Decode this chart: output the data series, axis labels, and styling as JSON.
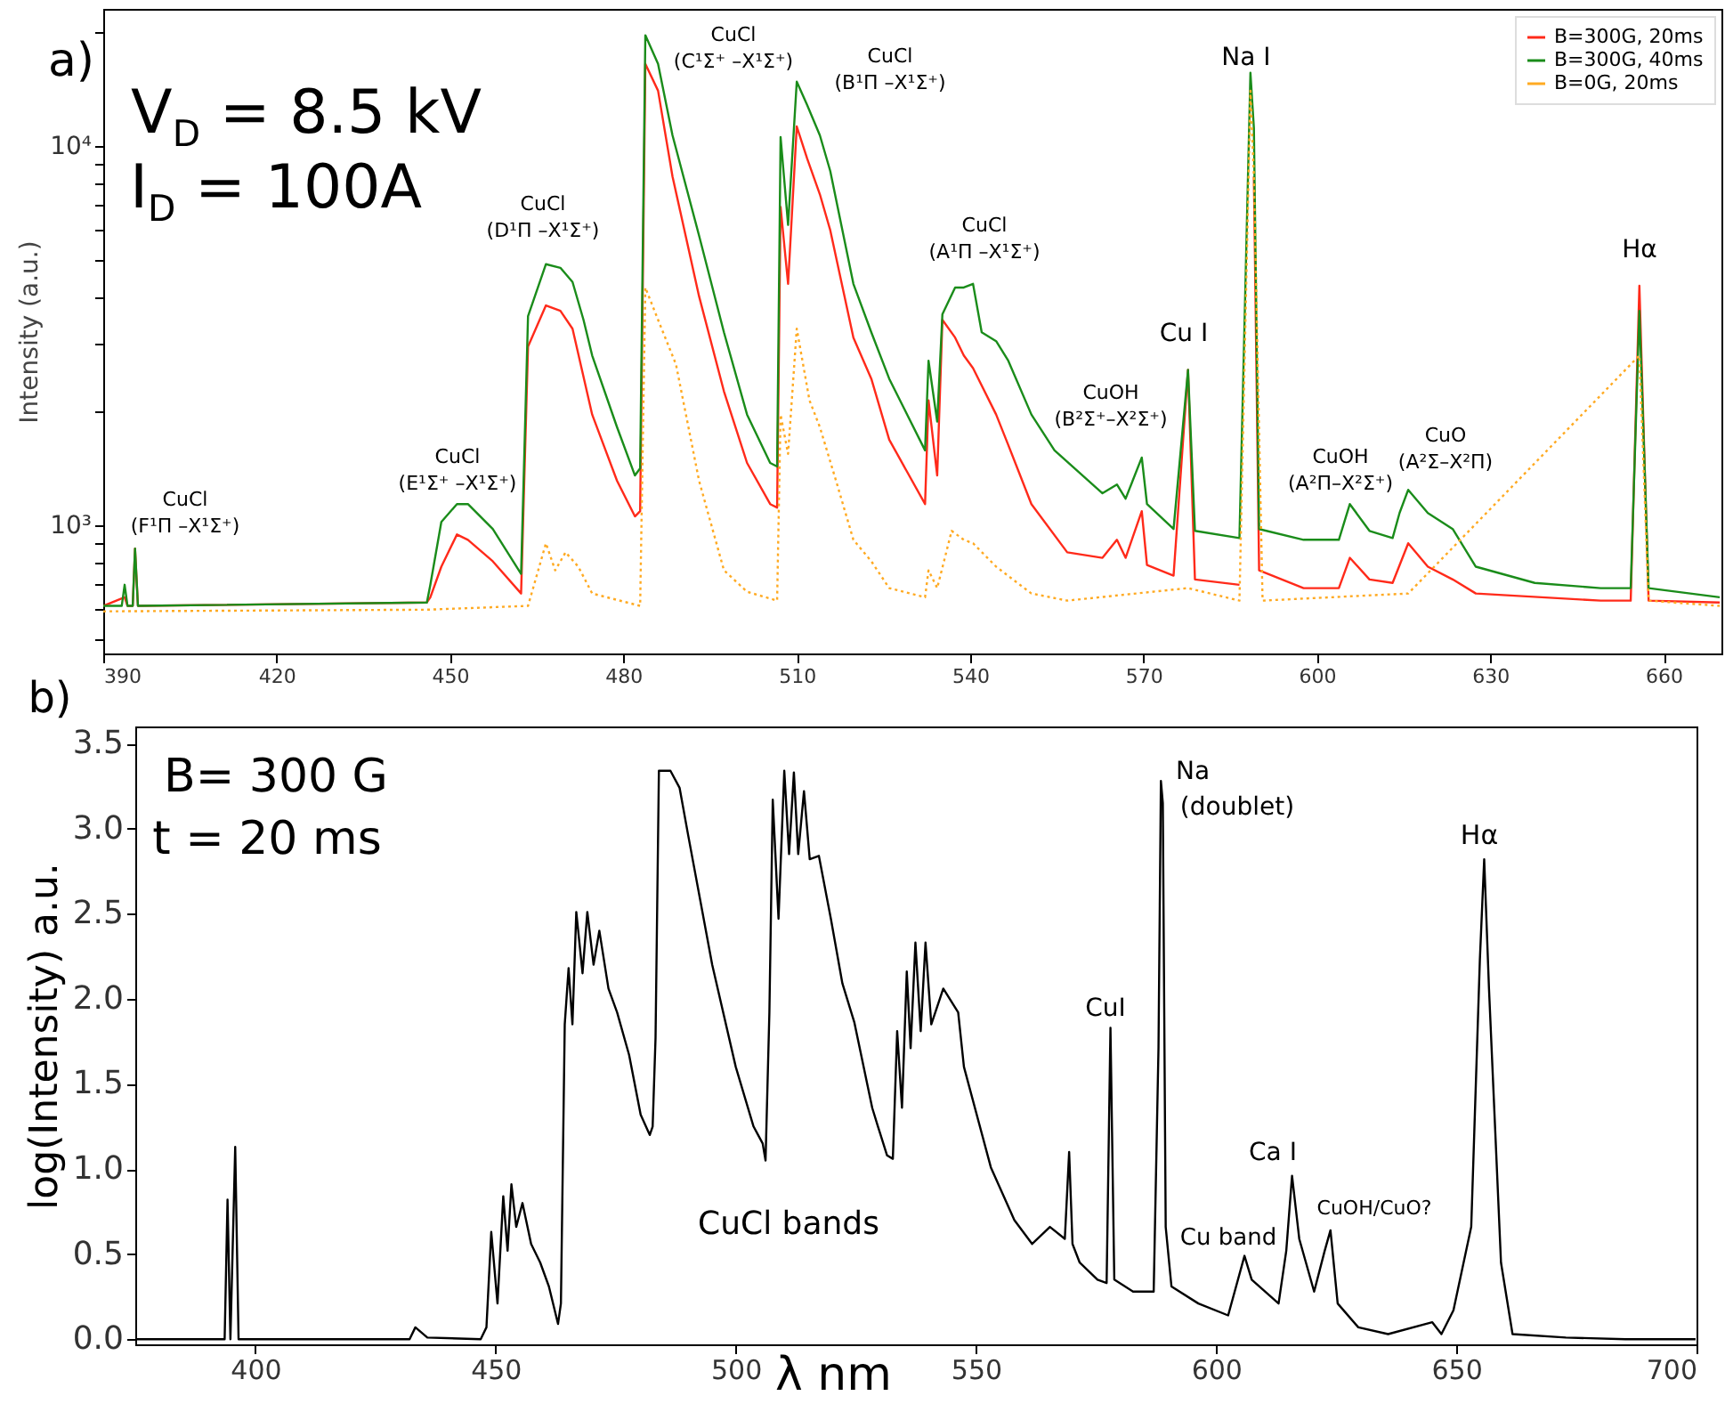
{
  "chart_data": [
    {
      "type": "line",
      "ylabel": "Intensity (a.u.)",
      "log": "y",
      "grid": false,
      "legend": "top right",
      "xlim": [
        390,
        670
      ],
      "xticks": [
        390,
        420,
        450,
        480,
        510,
        540,
        570,
        600,
        630,
        660
      ],
      "ylim": [
        460,
        23000
      ],
      "yticks": [
        {
          "value": 500,
          "label": null
        },
        {
          "value": 600,
          "label": null
        },
        {
          "value": 700,
          "label": null
        },
        {
          "value": 800,
          "label": null
        },
        {
          "value": 900,
          "label": null
        },
        {
          "value": 1000,
          "label": "10³"
        },
        {
          "value": 2000,
          "label": null
        },
        {
          "value": 3000,
          "label": null
        },
        {
          "value": 4000,
          "label": null
        },
        {
          "value": 5000,
          "label": null
        },
        {
          "value": 6000,
          "label": null
        },
        {
          "value": 7000,
          "label": null
        },
        {
          "value": 8000,
          "label": null
        },
        {
          "value": 9000,
          "label": null
        },
        {
          "value": 10000,
          "label": "10⁴"
        },
        {
          "value": 20000,
          "label": null
        }
      ],
      "series": [
        {
          "name": "B=300G, 20ms",
          "color": "#ff2a1a",
          "line_style": "solid",
          "x": [
            390,
            393.7,
            394.2,
            395.1,
            395.5,
            396,
            446,
            446.6,
            448.5,
            451.2,
            453.1,
            457.4,
            462.3,
            463.5,
            466.6,
            469.1,
            471.2,
            474.6,
            478.9,
            482,
            482.9,
            483.8,
            486,
            488.5,
            493.1,
            497.4,
            501.4,
            505.4,
            506.6,
            507.2,
            508.5,
            510,
            511.8,
            514,
            515.8,
            519.8,
            522.9,
            526,
            532.2,
            532.8,
            534.3,
            535.2,
            537.4,
            538.9,
            540.5,
            544.5,
            546.6,
            550.6,
            556.8,
            562.9,
            565.4,
            566.9,
            569.7,
            570.6,
            575.2,
            577.7,
            578.9,
            586.6,
            588.5,
            589.1,
            590,
            597.7,
            603.8,
            605.7,
            609.1,
            613.1,
            615.8,
            619.2,
            623.5,
            627.5,
            649.1,
            654.3,
            655.8,
            657.4,
            669.7
          ],
          "values": [
            614,
            647,
            614,
            614,
            869,
            614,
            627,
            647,
            779,
            947,
            917,
            805,
            662,
            2963,
            3804,
            3681,
            3302,
            1961,
            1312,
            1057,
            1091,
            16480,
            14000,
            8318,
            4018,
            2258,
            1462,
            1139,
            1115,
            6915,
            4335,
            11270,
            9268,
            7464,
            6000,
            3129,
            2437,
            1684,
            1139,
            2138,
            1355,
            3485,
            3129,
            2807,
            2600,
            1961,
            1630,
            1139,
            850,
            822,
            917,
            822,
            1091,
            787,
            738,
            2571,
            721,
            698,
            null,
            8318,
            762,
            684,
            684,
            822,
            721,
            706,
            898,
            779,
            721,
            662,
            634,
            634,
            4285,
            634,
            627
          ]
        },
        {
          "name": "B=300G, 40ms",
          "color": "#1a8c1a",
          "line_style": "solid",
          "x": [
            390,
            393.2,
            393.7,
            394.2,
            395.1,
            395.5,
            396,
            446,
            446.6,
            448.5,
            451.2,
            453.1,
            457.4,
            462.3,
            463.5,
            466.6,
            469.1,
            471.2,
            473.1,
            474.6,
            478.9,
            482,
            482.9,
            483.8,
            486,
            488.5,
            493.1,
            497.4,
            501.4,
            505.4,
            506.6,
            507.2,
            508.5,
            510,
            511.8,
            514,
            515.8,
            519.8,
            522.9,
            526,
            532.2,
            532.8,
            534.3,
            535.2,
            537.4,
            538.9,
            540.5,
            542,
            544.5,
            546.6,
            550.6,
            554.6,
            562.9,
            565.4,
            566.9,
            569.7,
            570.6,
            575.2,
            577.7,
            578.9,
            586.6,
            588.5,
            589.1,
            590,
            597.7,
            603.8,
            605.7,
            609.1,
            613.1,
            614.3,
            615.8,
            619.2,
            623.5,
            627.5,
            637.7,
            649.1,
            654.3,
            655.8,
            657.4,
            669.7
          ],
          "values": [
            614,
            614,
            698,
            614,
            614,
            869,
            614,
            627,
            698,
            1022,
            1139,
            1139,
            979,
            746,
            3562,
            4885,
            4779,
            4385,
            3485,
            2807,
            1817,
            1355,
            1415,
            19600,
            16480,
            10680,
            5808,
            3231,
            1961,
            1462,
            1431,
            10570,
            6198,
            14790,
            12830,
            10680,
            8590,
            4335,
            3231,
            2437,
            1578,
            2718,
            1878,
            3603,
            4240,
            4240,
            4335,
            3231,
            3062,
            2718,
            1961,
            1578,
            1216,
            1283,
            1177,
            1511,
            1139,
            979,
            2571,
            968,
            927,
            15610,
            11140,
            979,
            917,
            917,
            1139,
            968,
            927,
            1079,
            1242,
            1079,
            979,
            779,
            706,
            684,
            684,
            3681,
            684,
            647
          ]
        },
        {
          "name": "B=0G, 20ms",
          "color": "#ffaa22",
          "line_style": "dotted",
          "x": [
            390,
            446,
            463.5,
            466.6,
            468.2,
            470,
            472.2,
            474.6,
            482.9,
            483.8,
            486,
            489.1,
            493.1,
            497.4,
            501.4,
            506.6,
            507.2,
            508.5,
            510,
            512.2,
            514,
            516.8,
            519.8,
            522.9,
            526,
            532.2,
            532.8,
            534.3,
            536.8,
            538.9,
            540.5,
            544.5,
            550.6,
            556.8,
            577.7,
            586.6,
            588.5,
            589.1,
            590.6,
            615.8,
            655.8,
            657.4,
            669.7
          ],
          "values": [
            594,
            600,
            614,
            898,
            762,
            850,
            779,
            662,
            614,
            4240,
            3485,
            2659,
            1312,
            762,
            669,
            634,
            1961,
            1545,
            3302,
            2138,
            1817,
            1312,
            917,
            805,
            684,
            647,
            762,
            684,
            968,
            917,
            898,
            779,
            662,
            634,
            684,
            634,
            14000,
            8318,
            634,
            662,
            2807,
            634,
            614
          ]
        }
      ],
      "annotations": [
        "a)",
        "V$_{D}$ = 8.5 kV",
        "I$_{D}$ = 100A",
        "CuCl",
        "(F¹Π –X¹Σ⁺)",
        "CuCl",
        "(E¹Σ⁺ –X¹Σ⁺)",
        "CuCl",
        "(D¹Π –X¹Σ⁺)",
        "CuCl",
        "(C¹Σ⁺ –X¹Σ⁺)",
        "CuCl",
        "(B¹Π –X¹Σ⁺)",
        "CuCl",
        "(A¹Π –X¹Σ⁺)",
        "CuOH",
        "(B²Σ⁺–X²Σ⁺)",
        "Cu I",
        "Na I",
        "CuOH",
        "(A²Π–X²Σ⁺)",
        "CuO",
        "(A²Σ–X²Π)",
        "Hα"
      ]
    },
    {
      "type": "line",
      "xlabel": "λ nm",
      "ylabel": "log(Intensity) a.u.",
      "grid": false,
      "xlim": [
        375,
        700
      ],
      "xticks": [
        400,
        450,
        500,
        550,
        600,
        650,
        700
      ],
      "ylim": [
        -0.03,
        3.6
      ],
      "yticks": [
        {
          "value": 0,
          "label": "0.0"
        },
        {
          "value": 0.5,
          "label": "0.5"
        },
        {
          "value": 1,
          "label": "1.0"
        },
        {
          "value": 1.5,
          "label": "1.5"
        },
        {
          "value": 2,
          "label": "2.0"
        },
        {
          "value": 2.5,
          "label": "2.5"
        },
        {
          "value": 3,
          "label": "3.0"
        },
        {
          "value": 3.5,
          "label": "3.5"
        }
      ],
      "series": [
        {
          "color": "#000000",
          "line_style": "solid",
          "x": [
            375.3,
            393.6,
            394.2,
            394.8,
            395.8,
            396.5,
            432.1,
            433.3,
            435.8,
            446.9,
            448.1,
            449.1,
            450.4,
            451.6,
            452.5,
            453.3,
            454.3,
            455.6,
            457.4,
            459.3,
            461.1,
            463,
            463.6,
            464.4,
            465.2,
            466,
            466.8,
            468.1,
            469.1,
            470.4,
            471.6,
            473.5,
            475.3,
            477.8,
            480.2,
            482.1,
            482.7,
            483.3,
            484,
            486.4,
            488.3,
            490.1,
            495.1,
            500,
            503.7,
            505.6,
            506.2,
            507,
            507.7,
            508.9,
            510.1,
            511.1,
            512.1,
            513,
            514.2,
            515.4,
            517.3,
            519.8,
            522.2,
            524.7,
            528.4,
            529.6,
            531.5,
            532.7,
            533.6,
            534.6,
            535.6,
            536.4,
            537.4,
            538.5,
            539.5,
            540.7,
            543.2,
            546.3,
            547.5,
            553.1,
            558,
            561.7,
            565.4,
            568.5,
            569.4,
            570.1,
            571.6,
            575.3,
            577.2,
            578,
            578.8,
            582.7,
            587,
            588,
            588.5,
            588.9,
            589.5,
            590.7,
            596.3,
            602.5,
            605.9,
            607.4,
            613,
            614.6,
            615.8,
            617.3,
            620.4,
            622.6,
            623.8,
            625.3,
            629.6,
            635.8,
            645,
            646.9,
            649.4,
            653.1,
            654.9,
            655.8,
            656.8,
            659.3,
            661.7,
            672.8,
            685.2,
            699.8
          ],
          "values": [
            0,
            0,
            0.82,
            0,
            1.13,
            0,
            0,
            0.07,
            0.01,
            0,
            0.07,
            0.63,
            0.21,
            0.84,
            0.52,
            0.91,
            0.66,
            0.8,
            0.56,
            0.45,
            0.31,
            0.09,
            0.21,
            1.85,
            2.18,
            1.85,
            2.51,
            2.15,
            2.51,
            2.2,
            2.4,
            2.06,
            1.92,
            1.67,
            1.32,
            1.2,
            1.25,
            1.77,
            3.34,
            3.34,
            3.24,
            2.96,
            2.2,
            1.6,
            1.25,
            1.15,
            1.05,
            1.92,
            3.17,
            2.47,
            3.34,
            2.85,
            3.33,
            2.85,
            3.22,
            2.82,
            2.84,
            2.47,
            2.09,
            1.86,
            1.36,
            1.25,
            1.08,
            1.06,
            1.81,
            1.36,
            2.16,
            1.71,
            2.33,
            1.81,
            2.33,
            1.85,
            2.06,
            1.92,
            1.6,
            1.01,
            0.7,
            0.56,
            0.66,
            0.59,
            1.1,
            0.56,
            0.45,
            0.35,
            0.33,
            1.83,
            0.35,
            0.28,
            0.28,
            1.71,
            3.28,
            3.15,
            0.66,
            0.31,
            0.21,
            0.14,
            0.49,
            0.35,
            0.21,
            0.52,
            0.96,
            0.59,
            0.28,
            0.52,
            0.64,
            0.21,
            0.07,
            0.03,
            0.1,
            0.03,
            0.17,
            0.66,
            2.23,
            2.82,
            2.06,
            0.45,
            0.03,
            0.01,
            0,
            0
          ]
        }
      ],
      "annotations": [
        "b)",
        "B= 300 G",
        "t = 20 ms",
        "CuCl bands",
        "Na",
        "(doublet)",
        "CuI",
        "Cu band",
        "Ca I",
        "CuOH/CuO?",
        "Hα"
      ]
    }
  ]
}
